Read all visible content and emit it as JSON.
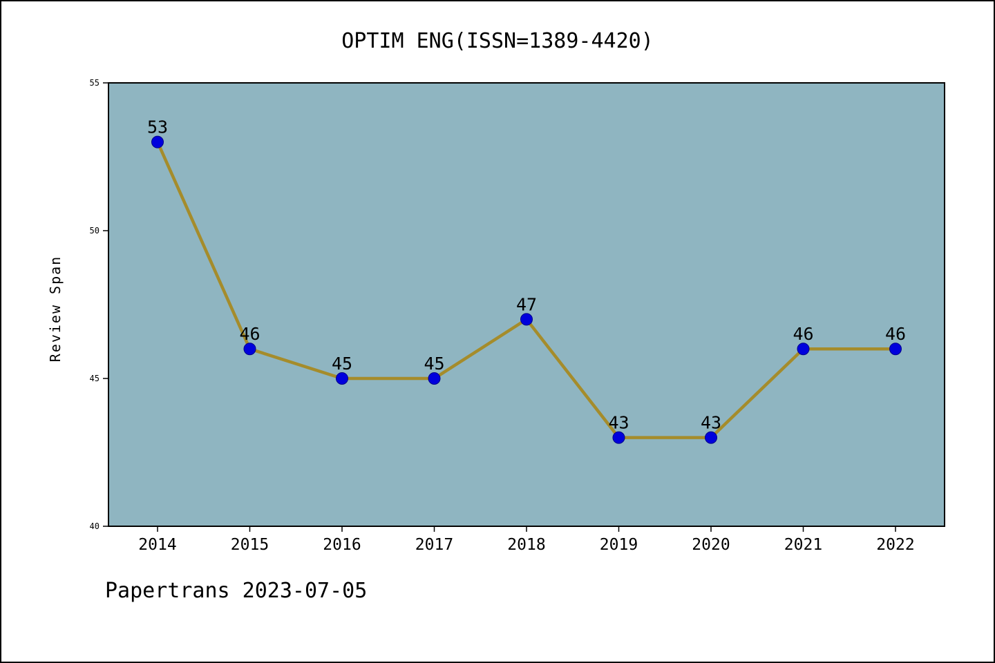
{
  "chart_data": {
    "type": "line",
    "title": "OPTIM ENG(ISSN=1389-4420)",
    "xlabel": "",
    "ylabel": "Review Span",
    "x": [
      2014,
      2015,
      2016,
      2017,
      2018,
      2019,
      2020,
      2021,
      2022
    ],
    "values": [
      53,
      46,
      45,
      45,
      47,
      43,
      43,
      46,
      46
    ],
    "point_labels": [
      "53",
      "46",
      "45",
      "45",
      "47",
      "43",
      "43",
      "46",
      "46"
    ],
    "ylim": [
      40,
      55
    ],
    "yticks": [
      40,
      45,
      50,
      55
    ],
    "grid": false,
    "legend_position": "none",
    "colors": {
      "plot_bg": "#8fb5c1",
      "line": "#a58c2b",
      "marker": "#0000dd",
      "marker_edge": "#00008b",
      "text": "#000000",
      "page_bg": "#ffffff",
      "border": "#000000"
    }
  },
  "footer": {
    "text": "Papertrans 2023-07-05"
  }
}
